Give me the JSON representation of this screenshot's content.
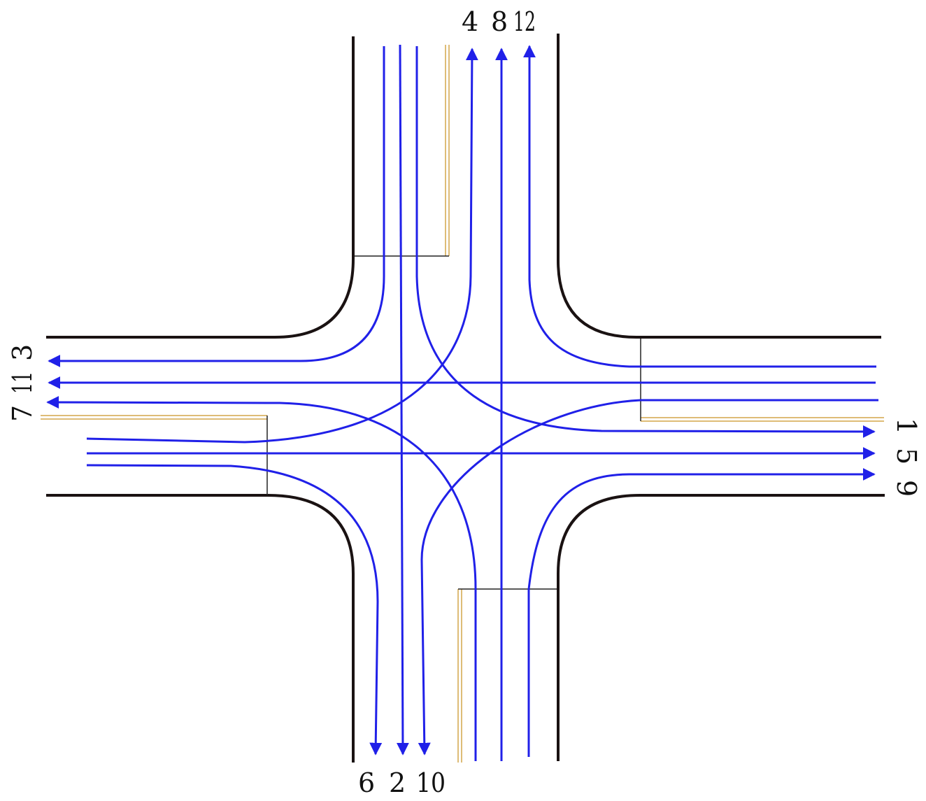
{
  "diagram": {
    "labels": {
      "north": [
        "4",
        "8",
        "12"
      ],
      "south": [
        "6",
        "2",
        "10"
      ],
      "west": [
        "7",
        "11",
        "3"
      ],
      "east": [
        "9",
        "5",
        "1"
      ]
    }
  },
  "colors": {
    "road_edge": "#1a1212",
    "flow": "#2020e8",
    "median": "#d4a64a",
    "stop_line": "#222222",
    "text": "#111111"
  }
}
